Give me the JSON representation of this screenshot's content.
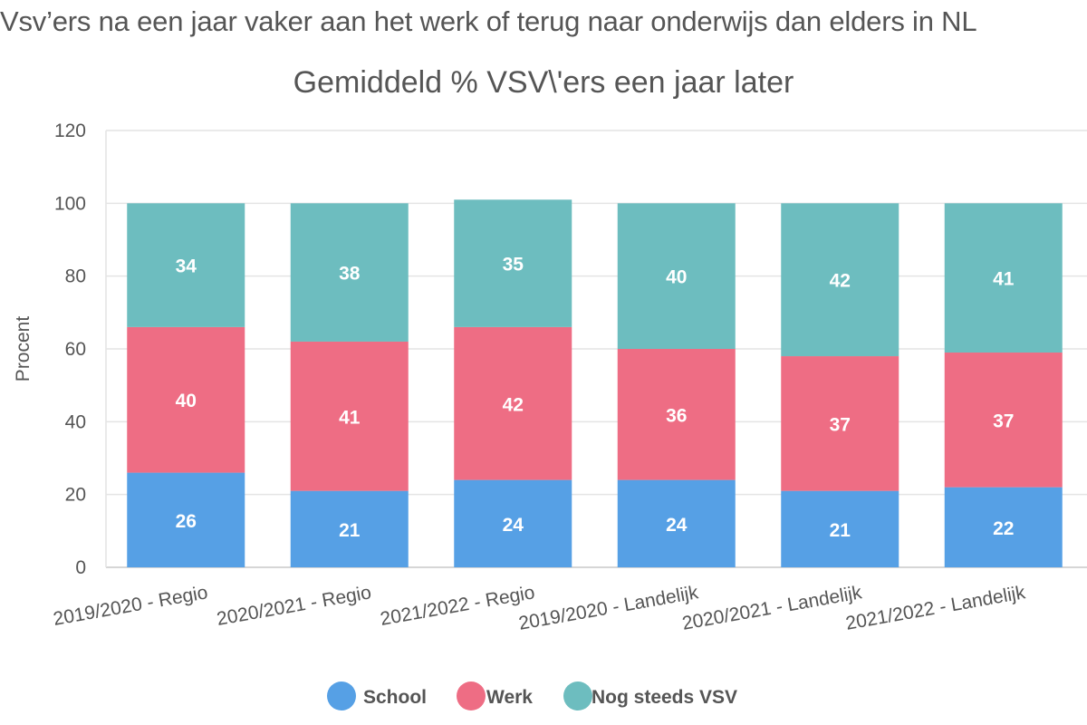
{
  "page": {
    "title": "Vsv’ers na een jaar vaker aan het werk of terug naar onderwijs dan elders in NL"
  },
  "chart_data": {
    "type": "bar",
    "stacked": true,
    "title": "Gemiddeld % VSV\\'ers een jaar later",
    "xlabel": "",
    "ylabel": "Procent",
    "ylim": [
      0,
      120
    ],
    "yticks": [
      0,
      20,
      40,
      60,
      80,
      100,
      120
    ],
    "grid": true,
    "legend_position": "bottom",
    "categories": [
      "2019/2020 - Regio",
      "2020/2021 - Regio",
      "2021/2022 - Regio",
      "2019/2020 - Landelijk",
      "2020/2021 - Landelijk",
      "2021/2022 - Landelijk"
    ],
    "series": [
      {
        "name": "School",
        "color": "#56a0e5",
        "values": [
          26,
          21,
          24,
          24,
          21,
          22
        ]
      },
      {
        "name": "Werk",
        "color": "#ee6d84",
        "values": [
          40,
          41,
          42,
          36,
          37,
          37
        ]
      },
      {
        "name": "Nog steeds VSV",
        "color": "#6dbdbf",
        "values": [
          34,
          38,
          35,
          40,
          42,
          41
        ]
      }
    ]
  }
}
